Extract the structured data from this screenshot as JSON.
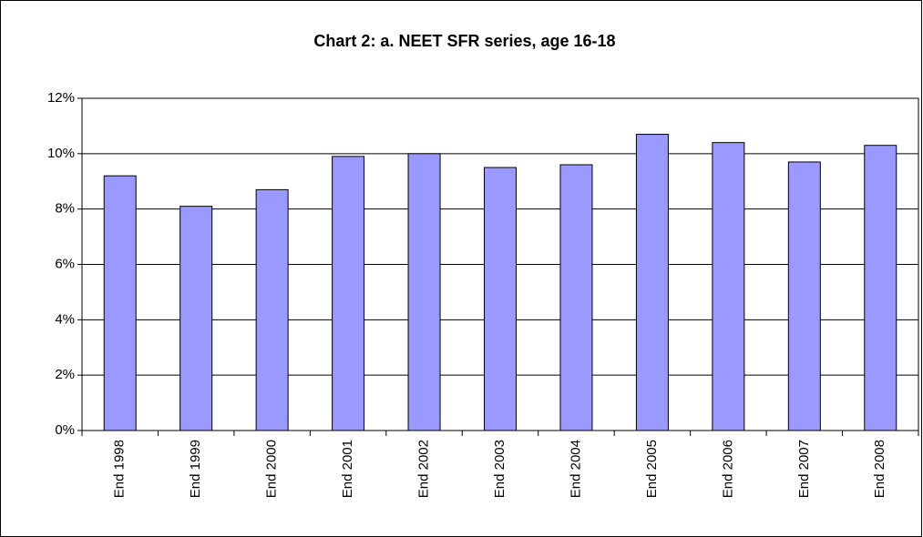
{
  "chart_data": {
    "type": "bar",
    "title": "Chart 2: a. NEET SFR series, age 16-18",
    "categories": [
      "End 1998",
      "End 1999",
      "End 2000",
      "End 2001",
      "End 2002",
      "End 2003",
      "End 2004",
      "End 2005",
      "End 2006",
      "End 2007",
      "End 2008"
    ],
    "values": [
      9.2,
      8.1,
      8.7,
      9.9,
      10.0,
      9.5,
      9.6,
      10.7,
      10.4,
      9.7,
      10.3
    ],
    "color": "#9999ff",
    "ylim": [
      0,
      12
    ],
    "yticks": [
      {
        "value": 0,
        "label": "0%"
      },
      {
        "value": 2,
        "label": "2%"
      },
      {
        "value": 4,
        "label": "4%"
      },
      {
        "value": 6,
        "label": "6%"
      },
      {
        "value": 8,
        "label": "8%"
      },
      {
        "value": 10,
        "label": "10%"
      },
      {
        "value": 12,
        "label": "12%"
      }
    ],
    "grid": true
  }
}
